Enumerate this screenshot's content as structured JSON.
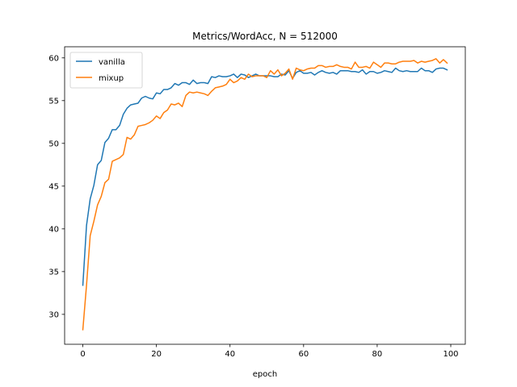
{
  "chart_data": {
    "type": "line",
    "title": "Metrics/WordAcc, N = 512000",
    "xlabel": "epoch",
    "ylabel": "",
    "xlim": [
      -4.95,
      103.95
    ],
    "ylim": [
      26.5,
      61.3
    ],
    "xticks": [
      0,
      20,
      40,
      60,
      80,
      100
    ],
    "yticks": [
      30,
      35,
      40,
      45,
      50,
      55,
      60
    ],
    "grid": false,
    "legend_position": "upper-left",
    "series": [
      {
        "name": "vanilla",
        "color": "#1f77b4",
        "x": [
          0,
          1,
          2,
          3,
          4,
          5,
          6,
          7,
          8,
          9,
          10,
          11,
          12,
          13,
          14,
          15,
          16,
          17,
          18,
          19,
          20,
          21,
          22,
          23,
          24,
          25,
          26,
          27,
          28,
          29,
          30,
          31,
          32,
          33,
          34,
          35,
          36,
          37,
          38,
          39,
          40,
          41,
          42,
          43,
          44,
          45,
          46,
          47,
          48,
          49,
          50,
          51,
          52,
          53,
          54,
          55,
          56,
          57,
          58,
          59,
          60,
          61,
          62,
          63,
          64,
          65,
          66,
          67,
          68,
          69,
          70,
          71,
          72,
          73,
          74,
          75,
          76,
          77,
          78,
          79,
          80,
          81,
          82,
          83,
          84,
          85,
          86,
          87,
          88,
          89,
          90,
          91,
          92,
          93,
          94,
          95,
          96,
          97,
          98,
          99
        ],
        "y": [
          33.4,
          40.4,
          43.5,
          45.1,
          47.5,
          48.0,
          50.1,
          50.6,
          51.6,
          51.6,
          52.1,
          53.4,
          54.1,
          54.5,
          54.6,
          54.7,
          55.3,
          55.5,
          55.3,
          55.2,
          55.9,
          55.8,
          56.3,
          56.3,
          56.5,
          57.0,
          56.8,
          57.1,
          57.1,
          56.9,
          57.4,
          57.0,
          57.1,
          57.1,
          57.0,
          57.8,
          57.7,
          57.9,
          57.8,
          57.8,
          57.9,
          58.1,
          57.7,
          58.1,
          58.0,
          57.7,
          57.9,
          58.1,
          57.9,
          57.9,
          57.9,
          57.9,
          57.8,
          57.8,
          58.1,
          58.0,
          58.5,
          57.6,
          58.3,
          58.5,
          58.2,
          58.2,
          58.3,
          58.0,
          58.3,
          58.5,
          58.3,
          58.2,
          58.3,
          58.1,
          58.5,
          58.5,
          58.5,
          58.4,
          58.4,
          58.3,
          58.6,
          58.1,
          58.4,
          58.4,
          58.2,
          58.3,
          58.5,
          58.4,
          58.3,
          58.8,
          58.5,
          58.4,
          58.5,
          58.4,
          58.4,
          58.4,
          58.8,
          58.5,
          58.5,
          58.3,
          58.7,
          58.8,
          58.8,
          58.6
        ]
      },
      {
        "name": "mixup",
        "color": "#ff7f0e",
        "x": [
          0,
          1,
          2,
          3,
          4,
          5,
          6,
          7,
          8,
          9,
          10,
          11,
          12,
          13,
          14,
          15,
          16,
          17,
          18,
          19,
          20,
          21,
          22,
          23,
          24,
          25,
          26,
          27,
          28,
          29,
          30,
          31,
          32,
          33,
          34,
          35,
          36,
          37,
          38,
          39,
          40,
          41,
          42,
          43,
          44,
          45,
          46,
          47,
          48,
          49,
          50,
          51,
          52,
          53,
          54,
          55,
          56,
          57,
          58,
          59,
          60,
          61,
          62,
          63,
          64,
          65,
          66,
          67,
          68,
          69,
          70,
          71,
          72,
          73,
          74,
          75,
          76,
          77,
          78,
          79,
          80,
          81,
          82,
          83,
          84,
          85,
          86,
          87,
          88,
          89,
          90,
          91,
          92,
          93,
          94,
          95,
          96,
          97,
          98,
          99
        ],
        "y": [
          28.2,
          33.4,
          39.2,
          40.9,
          42.8,
          43.8,
          45.4,
          45.8,
          47.9,
          48.1,
          48.3,
          48.7,
          50.7,
          50.5,
          51.0,
          52.0,
          52.1,
          52.2,
          52.4,
          52.7,
          53.2,
          52.9,
          53.6,
          53.9,
          54.6,
          54.5,
          54.7,
          54.3,
          55.6,
          56.0,
          55.9,
          56.0,
          55.9,
          55.8,
          55.6,
          56.1,
          56.5,
          56.6,
          56.7,
          56.9,
          57.5,
          57.1,
          57.3,
          57.7,
          57.5,
          58.1,
          57.8,
          57.9,
          57.9,
          57.9,
          57.7,
          58.5,
          58.1,
          58.6,
          57.9,
          58.2,
          58.7,
          57.5,
          58.8,
          58.6,
          58.5,
          58.7,
          58.8,
          58.8,
          59.1,
          59.1,
          58.9,
          59.0,
          59.0,
          59.2,
          59.0,
          58.9,
          58.9,
          58.7,
          59.5,
          58.9,
          58.9,
          59.0,
          58.8,
          59.5,
          59.2,
          58.9,
          59.4,
          59.4,
          59.3,
          59.3,
          59.5,
          59.6,
          59.6,
          59.6,
          59.7,
          59.4,
          59.6,
          59.5,
          59.6,
          59.7,
          59.9,
          59.4,
          59.8,
          59.4
        ]
      }
    ]
  }
}
